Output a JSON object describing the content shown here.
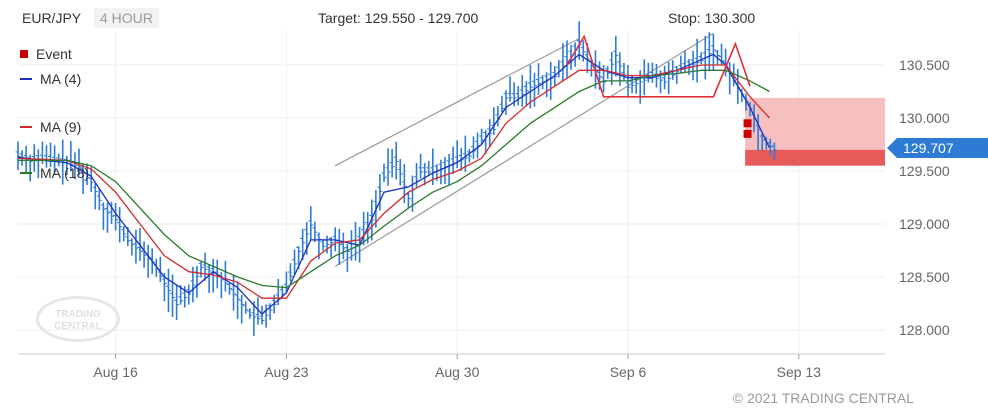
{
  "header": {
    "symbol": "EUR/JPY",
    "interval": "4 HOUR",
    "target": "Target: 129.550 - 129.700",
    "stop": "Stop: 130.300"
  },
  "legend": [
    {
      "label": "Event",
      "color": "#cc0000"
    },
    {
      "label": "MA (4)",
      "color": "#1f2fbf"
    },
    {
      "label": "MA (9)",
      "color": "#d22a2a"
    },
    {
      "label": "MA (18)",
      "color": "#2a7a2a"
    }
  ],
  "watermark": "TRADING CENTRAL",
  "copyright": "© 2021 TRADING CENTRAL",
  "last_price_label": "129.707",
  "colors": {
    "price_bar": "#2e7bd6",
    "ma4": "#1f2fbf",
    "ma9": "#d22a2a",
    "ma18": "#2a7a2a",
    "channel": "#999999",
    "pattern": "#e0303a",
    "stop_zone": "#f5b0b0",
    "target_zone": "#e85a5a",
    "event": "#cc0000",
    "last_price": "#2e7bd6"
  },
  "chart_data": {
    "type": "line",
    "title": "",
    "xlabel": "",
    "ylabel": "",
    "ylim": [
      127.8,
      130.8
    ],
    "y_ticks": [
      128.0,
      128.5,
      129.0,
      129.5,
      130.0,
      130.5
    ],
    "y_tick_labels": [
      "128.000",
      "128.500",
      "129.000",
      "129.500",
      "130.000",
      "130.500"
    ],
    "x_range_days": [
      0,
      50
    ],
    "x_ticks": [
      {
        "day": 4,
        "label": "Aug 16"
      },
      {
        "day": 11,
        "label": "Aug 23"
      },
      {
        "day": 18,
        "label": "Aug 30"
      },
      {
        "day": 25,
        "label": "Sep 6"
      },
      {
        "day": 32,
        "label": "Sep 13"
      }
    ],
    "price_points": [
      [
        0.0,
        129.65
      ],
      [
        0.5,
        129.6
      ],
      [
        1.0,
        129.62
      ],
      [
        1.5,
        129.6
      ],
      [
        2.0,
        129.58
      ],
      [
        2.5,
        129.55
      ],
      [
        3.0,
        129.4
      ],
      [
        3.5,
        129.15
      ],
      [
        4.0,
        129.05
      ],
      [
        4.5,
        128.85
      ],
      [
        5.0,
        128.75
      ],
      [
        5.5,
        128.65
      ],
      [
        6.0,
        128.45
      ],
      [
        6.5,
        128.25
      ],
      [
        7.0,
        128.35
      ],
      [
        7.5,
        128.6
      ],
      [
        8.0,
        128.55
      ],
      [
        8.5,
        128.45
      ],
      [
        9.0,
        128.3
      ],
      [
        9.5,
        128.15
      ],
      [
        10.0,
        128.1
      ],
      [
        10.5,
        128.25
      ],
      [
        11.0,
        128.4
      ],
      [
        11.5,
        128.75
      ],
      [
        12.0,
        129.0
      ],
      [
        12.5,
        128.8
      ],
      [
        13.0,
        128.85
      ],
      [
        13.5,
        128.75
      ],
      [
        14.0,
        128.85
      ],
      [
        14.5,
        129.05
      ],
      [
        15.0,
        129.45
      ],
      [
        15.5,
        129.6
      ],
      [
        16.0,
        129.25
      ],
      [
        16.5,
        129.5
      ],
      [
        17.0,
        129.5
      ],
      [
        17.5,
        129.55
      ],
      [
        18.0,
        129.6
      ],
      [
        18.5,
        129.65
      ],
      [
        19.0,
        129.8
      ],
      [
        19.5,
        129.9
      ],
      [
        20.0,
        130.2
      ],
      [
        20.5,
        130.2
      ],
      [
        21.0,
        130.3
      ],
      [
        22.0,
        130.4
      ],
      [
        22.5,
        130.55
      ],
      [
        23.0,
        130.7
      ],
      [
        23.5,
        130.5
      ],
      [
        24.0,
        130.35
      ],
      [
        24.5,
        130.6
      ],
      [
        25.0,
        130.3
      ],
      [
        25.5,
        130.35
      ],
      [
        26.0,
        130.4
      ],
      [
        26.5,
        130.35
      ],
      [
        27.0,
        130.45
      ],
      [
        27.5,
        130.5
      ],
      [
        28.0,
        130.55
      ],
      [
        28.5,
        130.65
      ],
      [
        29.0,
        130.5
      ],
      [
        29.5,
        130.3
      ],
      [
        30.0,
        130.1
      ],
      [
        30.5,
        129.8
      ],
      [
        31.0,
        129.707
      ]
    ],
    "series": [
      {
        "name": "MA (4)",
        "values": [
          [
            0.0,
            129.63
          ],
          [
            1.0,
            129.6
          ],
          [
            2.0,
            129.58
          ],
          [
            3.0,
            129.45
          ],
          [
            4.0,
            129.1
          ],
          [
            5.0,
            128.8
          ],
          [
            6.0,
            128.5
          ],
          [
            7.0,
            128.35
          ],
          [
            8.0,
            128.55
          ],
          [
            9.0,
            128.4
          ],
          [
            10.0,
            128.15
          ],
          [
            11.0,
            128.35
          ],
          [
            12.0,
            128.85
          ],
          [
            13.0,
            128.85
          ],
          [
            14.0,
            128.8
          ],
          [
            15.0,
            129.3
          ],
          [
            16.0,
            129.35
          ],
          [
            17.0,
            129.48
          ],
          [
            18.0,
            129.58
          ],
          [
            19.0,
            129.75
          ],
          [
            20.0,
            130.1
          ],
          [
            21.0,
            130.25
          ],
          [
            22.0,
            130.4
          ],
          [
            23.0,
            130.6
          ],
          [
            24.0,
            130.45
          ],
          [
            25.0,
            130.38
          ],
          [
            26.0,
            130.38
          ],
          [
            27.0,
            130.45
          ],
          [
            28.0,
            130.55
          ],
          [
            28.5,
            130.6
          ],
          [
            29.0,
            130.5
          ],
          [
            30.0,
            130.1
          ],
          [
            30.8,
            129.72
          ]
        ]
      },
      {
        "name": "MA (9)",
        "values": [
          [
            0.0,
            129.62
          ],
          [
            2.0,
            129.6
          ],
          [
            3.0,
            129.52
          ],
          [
            4.0,
            129.3
          ],
          [
            5.0,
            129.0
          ],
          [
            6.0,
            128.7
          ],
          [
            7.0,
            128.55
          ],
          [
            8.0,
            128.52
          ],
          [
            9.0,
            128.45
          ],
          [
            10.0,
            128.3
          ],
          [
            11.0,
            128.3
          ],
          [
            12.0,
            128.65
          ],
          [
            13.0,
            128.82
          ],
          [
            14.0,
            128.85
          ],
          [
            15.0,
            129.1
          ],
          [
            16.0,
            129.3
          ],
          [
            17.0,
            129.42
          ],
          [
            18.0,
            129.5
          ],
          [
            19.0,
            129.62
          ],
          [
            20.0,
            129.95
          ],
          [
            21.0,
            130.15
          ],
          [
            22.0,
            130.3
          ],
          [
            23.0,
            130.45
          ],
          [
            24.0,
            130.45
          ],
          [
            25.0,
            130.4
          ],
          [
            26.0,
            130.4
          ],
          [
            27.0,
            130.45
          ],
          [
            28.0,
            130.5
          ],
          [
            29.0,
            130.5
          ],
          [
            30.0,
            130.2
          ],
          [
            30.8,
            130.0
          ]
        ]
      },
      {
        "name": "MA (18)",
        "values": [
          [
            0.0,
            129.6
          ],
          [
            2.0,
            129.6
          ],
          [
            3.0,
            129.55
          ],
          [
            4.0,
            129.4
          ],
          [
            5.0,
            129.15
          ],
          [
            6.0,
            128.9
          ],
          [
            7.0,
            128.7
          ],
          [
            8.0,
            128.6
          ],
          [
            9.0,
            128.5
          ],
          [
            10.0,
            128.42
          ],
          [
            11.0,
            128.4
          ],
          [
            12.0,
            128.55
          ],
          [
            13.0,
            128.7
          ],
          [
            14.0,
            128.8
          ],
          [
            15.0,
            128.98
          ],
          [
            16.0,
            129.15
          ],
          [
            17.0,
            129.3
          ],
          [
            18.0,
            129.4
          ],
          [
            19.0,
            129.55
          ],
          [
            20.0,
            129.75
          ],
          [
            21.0,
            129.95
          ],
          [
            22.0,
            130.1
          ],
          [
            23.0,
            130.25
          ],
          [
            24.0,
            130.35
          ],
          [
            25.0,
            130.35
          ],
          [
            26.0,
            130.4
          ],
          [
            27.0,
            130.42
          ],
          [
            28.0,
            130.45
          ],
          [
            29.0,
            130.45
          ],
          [
            30.0,
            130.35
          ],
          [
            30.8,
            130.25
          ]
        ]
      }
    ],
    "channel_lines": [
      [
        [
          13.0,
          129.55
        ],
        [
          23.0,
          130.75
        ]
      ],
      [
        [
          13.0,
          128.6
        ],
        [
          28.5,
          130.8
        ]
      ]
    ],
    "pattern_line": [
      [
        22.5,
        130.5
      ],
      [
        23.2,
        130.77
      ],
      [
        24.0,
        130.2
      ],
      [
        25.0,
        130.2
      ],
      [
        28.5,
        130.2
      ],
      [
        29.4,
        130.7
      ],
      [
        30.0,
        130.3
      ]
    ],
    "stop_zone": [
      129.7,
      130.19
    ],
    "target_zone": [
      129.55,
      129.7
    ],
    "zone_start_day": 29.8,
    "event_points": [
      [
        29.9,
        129.95
      ],
      [
        29.9,
        129.85
      ]
    ],
    "last_price": 129.707
  }
}
